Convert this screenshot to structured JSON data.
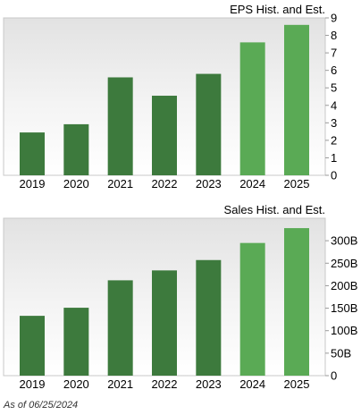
{
  "as_of_text": "As of 06/25/2024",
  "colors": {
    "historical": "#3d7a3d",
    "estimate": "#5aaa55"
  },
  "chart_data": [
    {
      "type": "bar",
      "title": "EPS Hist. and Est.",
      "categories": [
        "2019",
        "2020",
        "2021",
        "2022",
        "2023",
        "2024",
        "2025"
      ],
      "values": [
        2.45,
        2.92,
        5.6,
        4.55,
        5.8,
        7.6,
        8.6
      ],
      "estimate_flags": [
        false,
        false,
        false,
        false,
        false,
        true,
        true
      ],
      "ylim": [
        0,
        9
      ],
      "yticks": [
        0,
        1,
        2,
        3,
        4,
        5,
        6,
        7,
        8,
        9
      ],
      "ytick_labels": [
        "0",
        "1",
        "2",
        "3",
        "4",
        "5",
        "6",
        "7",
        "8",
        "9"
      ],
      "ylabel_position": "right",
      "grid": false
    },
    {
      "type": "bar",
      "title": "Sales Hist. and Est.",
      "categories": [
        "2019",
        "2020",
        "2021",
        "2022",
        "2023",
        "2024",
        "2025"
      ],
      "values": [
        133,
        151,
        212,
        234,
        257,
        295,
        328
      ],
      "estimate_flags": [
        false,
        false,
        false,
        false,
        false,
        true,
        true
      ],
      "ylim": [
        0,
        350
      ],
      "yticks": [
        0,
        50,
        100,
        150,
        200,
        250,
        300
      ],
      "ytick_labels": [
        "0",
        "50B",
        "100B",
        "150B",
        "200B",
        "250B",
        "300B"
      ],
      "ylabel_position": "right",
      "grid": false
    }
  ]
}
